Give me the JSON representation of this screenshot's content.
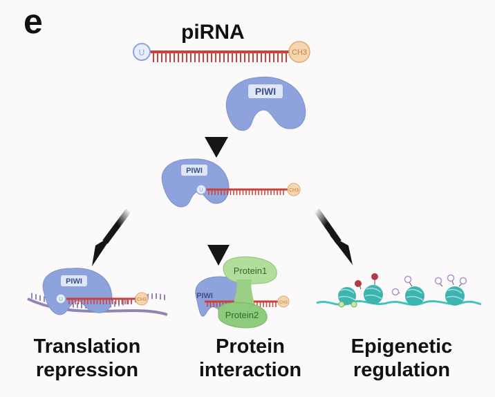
{
  "panel": {
    "letter": "e",
    "title": "piRNA"
  },
  "labels": {
    "u": "U",
    "ch3": "CH3",
    "piwi": "PIWI",
    "protein1": "Protein1",
    "protein2": "Protein2"
  },
  "outcomes": [
    {
      "line1": "Translation",
      "line2": "repression"
    },
    {
      "line1": "Protein",
      "line2": "interaction"
    },
    {
      "line1": "Epigenetic",
      "line2": "regulation"
    }
  ],
  "colors": {
    "rna": "#c8413a",
    "piwi": "#8ea2dc",
    "piwi_label": "#dfe6f7",
    "u_cap": "#e7eefb",
    "ch3_cap": "#f6d6b0",
    "protein1": "#b2dd9b",
    "protein2": "#8fcb7d",
    "mrna": "#8f84b2",
    "dna": "#43c3bd",
    "nucleosome": "#3fb3b0",
    "mark_red": "#b23a48",
    "mark_purple": "#a894cc",
    "arrow": "#151515"
  }
}
